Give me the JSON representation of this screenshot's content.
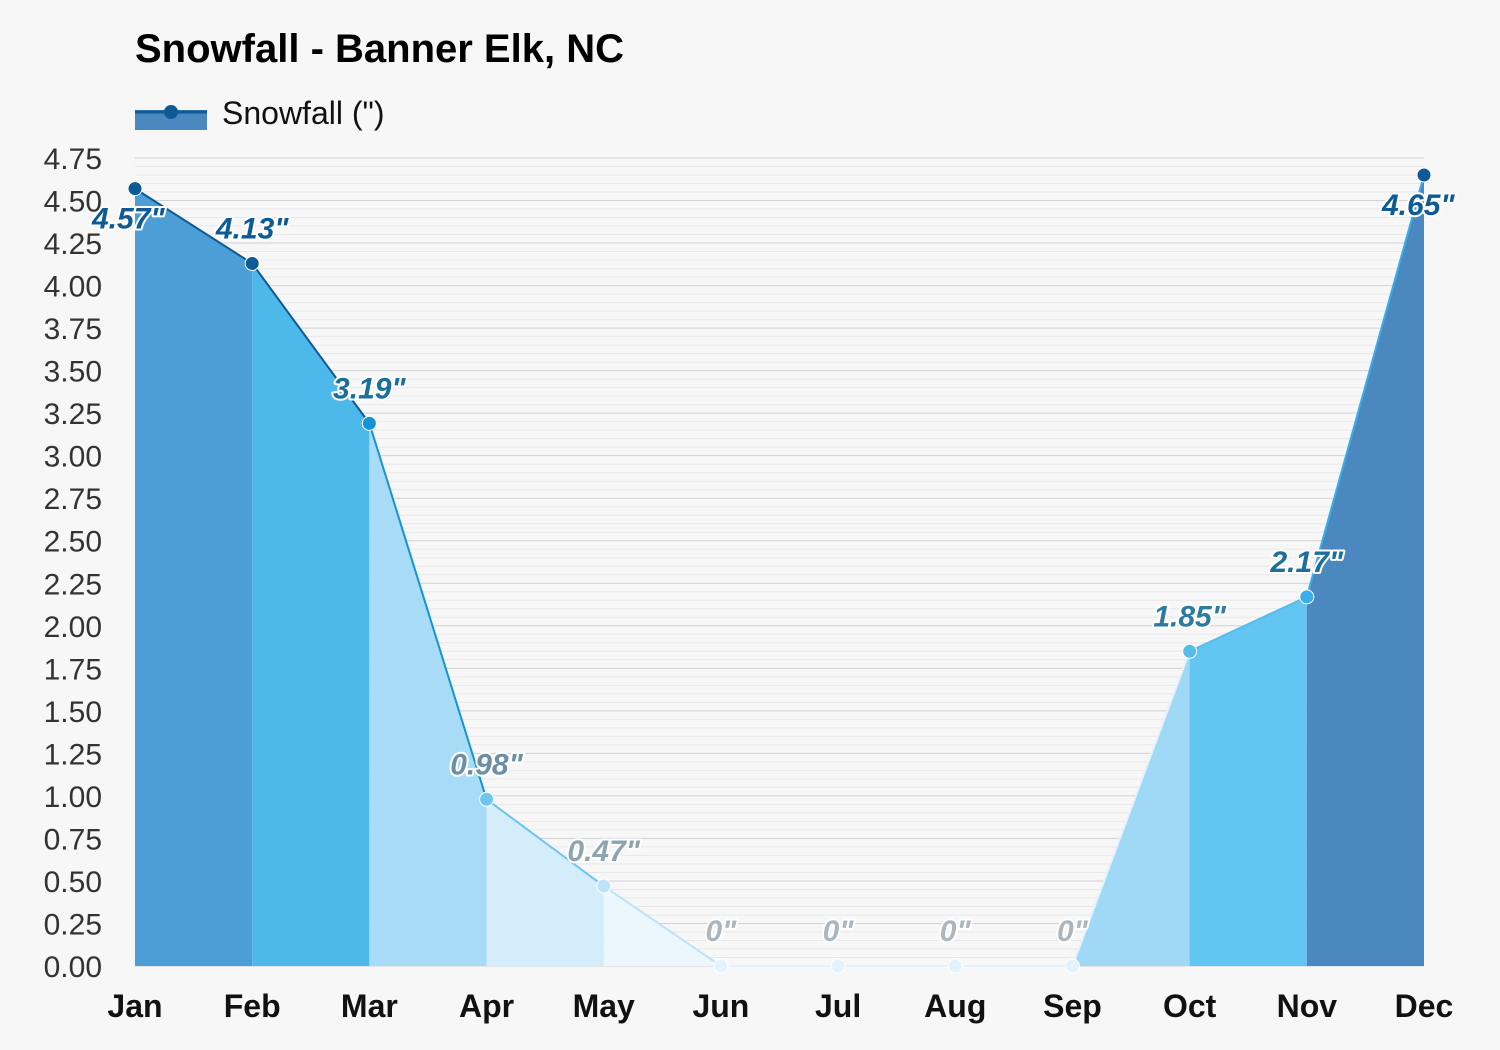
{
  "chart_data": {
    "type": "area",
    "title": "Snowfall - Banner Elk, NC",
    "legend": {
      "label": "Snowfall (\")",
      "position": "top-left",
      "color": "#4a88bf"
    },
    "categories": [
      "Jan",
      "Feb",
      "Mar",
      "Apr",
      "May",
      "Jun",
      "Jul",
      "Aug",
      "Sep",
      "Oct",
      "Nov",
      "Dec"
    ],
    "series": [
      {
        "name": "Snowfall (\")",
        "values": [
          4.57,
          4.13,
          3.19,
          0.98,
          0.47,
          0,
          0,
          0,
          0,
          1.85,
          2.17,
          4.65
        ]
      }
    ],
    "data_labels": [
      "4.57\"",
      "4.13\"",
      "3.19\"",
      "0.98\"",
      "0.47\"",
      "0\"",
      "0\"",
      "0\"",
      "0\"",
      "1.85\"",
      "2.17\"",
      "4.65\""
    ],
    "yticks": [
      "0.00",
      "0.25",
      "0.50",
      "0.75",
      "1.00",
      "1.25",
      "1.50",
      "1.75",
      "2.00",
      "2.25",
      "2.50",
      "2.75",
      "3.00",
      "3.25",
      "3.50",
      "3.75",
      "4.00",
      "4.25",
      "4.50",
      "4.75"
    ],
    "ylim": [
      0,
      4.75
    ],
    "grid": true,
    "segment_fill_colors": [
      "#4b9ed6",
      "#4db8ea",
      "#a8dcf6",
      "#d4edfb",
      "#ebf6fd",
      "#f5fbfe",
      "#f5fbfe",
      "#f5fbfe",
      "#9fd9f5",
      "#62c5f2",
      "#4a88bf"
    ],
    "point_colors": [
      "#0d5a97",
      "#0d5a97",
      "#1494d6",
      "#6ec6ef",
      "#bde3f7",
      "#e3f3fc",
      "#e3f3fc",
      "#e3f3fc",
      "#e3f3fc",
      "#55bde9",
      "#3aaee8",
      "#0d5a97"
    ],
    "label_colors": [
      "#0d5a97",
      "#0d5a97",
      "#1a6f9c",
      "#6c8fa3",
      "#8fa4b1",
      "#aab7c0",
      "#aab7c0",
      "#aab7c0",
      "#aab7c0",
      "#2d7ba3",
      "#1a6f9c",
      "#0d5a97"
    ]
  }
}
